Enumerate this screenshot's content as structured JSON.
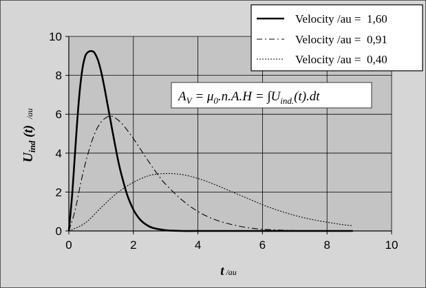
{
  "chart_data": {
    "type": "line",
    "xlabel": {
      "main": "t",
      "unit": " /au"
    },
    "ylabel": {
      "main": "U",
      "sub": "ind",
      "paren": " (t)",
      "unit": " /au"
    },
    "xlim": [
      0,
      10
    ],
    "ylim": [
      0,
      10
    ],
    "xticks": [
      "0",
      "2",
      "4",
      "6",
      "8",
      "10"
    ],
    "yticks": [
      "0",
      "2",
      "4",
      "6",
      "8",
      "10"
    ],
    "grid": true,
    "legend_position": "top-right",
    "annotation": {
      "parts": [
        "A",
        "V",
        " = μ",
        "0",
        ".n.A.H = ∫U",
        "ind.",
        "(t).dt"
      ]
    },
    "series": [
      {
        "name": "Velocity /au =  1,60",
        "style": "solid",
        "x": [
          0,
          0.1,
          0.2,
          0.3,
          0.4,
          0.5,
          0.6,
          0.7,
          0.75,
          0.8,
          0.9,
          1.0,
          1.1,
          1.2,
          1.3,
          1.4,
          1.5,
          1.6,
          1.8,
          2.0,
          2.2,
          2.4,
          2.6,
          3.0,
          3.5,
          4.0,
          5.0,
          6.0,
          7.0,
          8.0,
          8.8
        ],
        "y": [
          0,
          1.8,
          4.2,
          6.5,
          8.1,
          8.95,
          9.2,
          9.25,
          9.22,
          9.15,
          8.8,
          8.2,
          7.4,
          6.5,
          5.6,
          4.7,
          3.85,
          3.1,
          1.9,
          1.1,
          0.6,
          0.32,
          0.16,
          0.04,
          0.0,
          0,
          0,
          0,
          0,
          0,
          0
        ]
      },
      {
        "name": "Velocity /au =  0,91",
        "style": "dashdot",
        "x": [
          0,
          0.2,
          0.4,
          0.6,
          0.8,
          1.0,
          1.2,
          1.3,
          1.4,
          1.6,
          1.8,
          2.0,
          2.2,
          2.5,
          2.8,
          3.0,
          3.5,
          4.0,
          4.5,
          5.0,
          5.5,
          6.0,
          7.0,
          8.0,
          8.8
        ],
        "y": [
          0,
          1.1,
          2.7,
          4.0,
          5.0,
          5.6,
          5.87,
          5.9,
          5.85,
          5.6,
          5.2,
          4.75,
          4.25,
          3.5,
          2.8,
          2.4,
          1.6,
          1.0,
          0.6,
          0.35,
          0.18,
          0.09,
          0.02,
          0.0,
          0
        ]
      },
      {
        "name": "Velocity /au =  0,40",
        "style": "dotted",
        "x": [
          0,
          0.5,
          1.0,
          1.5,
          2.0,
          2.5,
          3.0,
          3.5,
          4.0,
          4.5,
          5.0,
          5.5,
          6.0,
          6.5,
          7.0,
          7.5,
          8.0,
          8.5,
          8.8
        ],
        "y": [
          0,
          0.4,
          1.2,
          1.95,
          2.5,
          2.85,
          2.95,
          2.9,
          2.7,
          2.4,
          2.05,
          1.7,
          1.35,
          1.05,
          0.8,
          0.6,
          0.45,
          0.32,
          0.27
        ]
      }
    ]
  }
}
